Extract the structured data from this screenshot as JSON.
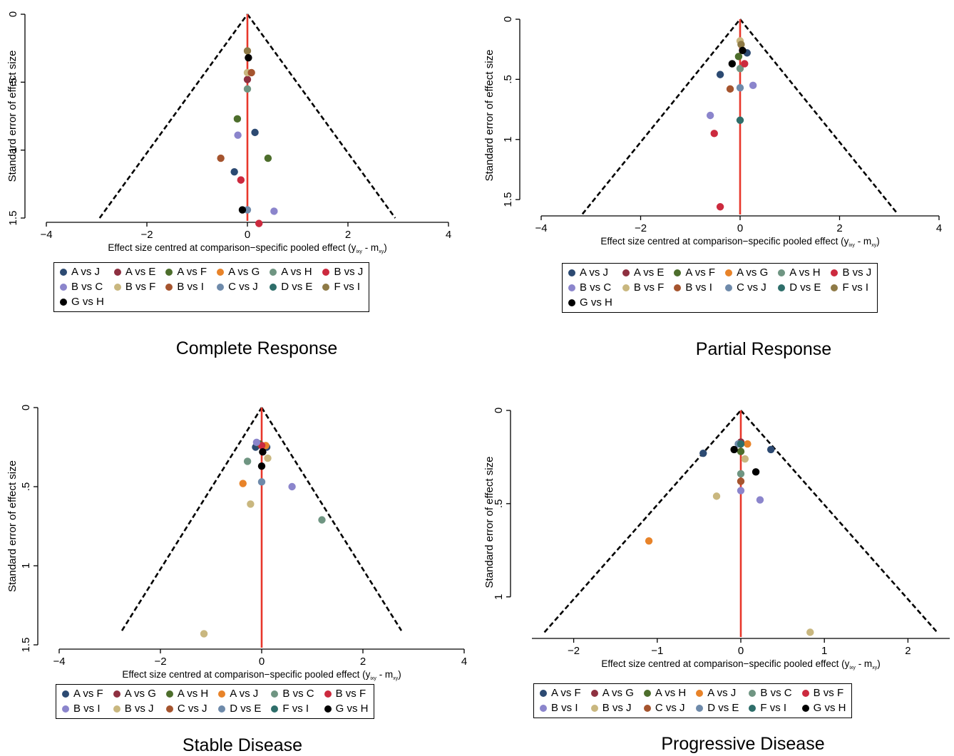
{
  "y_axis_label": "Standard error of effect size",
  "x_axis_label_prefix": "Effect size centred at comparison−specific pooled effect (y",
  "x_axis_label_sub1": "ixy",
  "x_axis_label_mid": " - m",
  "x_axis_label_sub2": "xy",
  "x_axis_label_suffix": ")",
  "colors": {
    "null_line": "#e8372b",
    "funnel_line": "#000000",
    "navy": "#2c4a72",
    "maroon": "#8e3040",
    "olive": "#4d6e2c",
    "orange": "#e88329",
    "sage": "#6f9582",
    "crimson": "#cc2a3e",
    "lavender": "#8b85cc",
    "sand": "#c9b77f",
    "rust": "#a5542e",
    "slate": "#6e8aaa",
    "teal": "#2e6e6a",
    "khaki": "#8e7a46",
    "black": "#000000"
  },
  "chart_data": [
    {
      "type": "scatter",
      "title": "Complete Response",
      "xlabel": "Effect size centred at comparison−specific pooled effect (yixy - mxy)",
      "ylabel": "Standard error of effect size",
      "xlim": [
        -4,
        4
      ],
      "ylim": [
        0,
        1.5
      ],
      "y_reversed": true,
      "xticks": [
        "−4",
        "−2",
        "0",
        "2",
        "4"
      ],
      "xtick_values": [
        -4,
        -2,
        0,
        2,
        4
      ],
      "yticks": [
        "0",
        ".5",
        "1",
        "1.5"
      ],
      "ytick_values": [
        0,
        0.5,
        1,
        1.5
      ],
      "grid": false,
      "legend_position": "bottom",
      "funnel": {
        "apex": [
          0,
          0
        ],
        "left_end": [
          -2.94,
          1.5
        ],
        "right_end": [
          2.94,
          1.5
        ]
      },
      "null_line_x": 0,
      "series": [
        {
          "name": "A vs J",
          "color": "navy",
          "points": [
            [
              0.15,
              0.87
            ],
            [
              -0.26,
              1.16
            ]
          ]
        },
        {
          "name": "A vs E",
          "color": "maroon",
          "points": [
            [
              0.0,
              0.48
            ]
          ]
        },
        {
          "name": "A vs F",
          "color": "olive",
          "points": [
            [
              -0.2,
              0.77
            ],
            [
              0.41,
              1.06
            ]
          ]
        },
        {
          "name": "A vs G",
          "color": "orange",
          "points": []
        },
        {
          "name": "A vs H",
          "color": "sage",
          "points": [
            [
              0.0,
              0.55
            ]
          ]
        },
        {
          "name": "B vs J",
          "color": "crimson",
          "points": [
            [
              -0.13,
              1.22
            ],
            [
              0.23,
              1.54
            ]
          ]
        },
        {
          "name": "B vs C",
          "color": "lavender",
          "points": [
            [
              -0.19,
              0.89
            ],
            [
              0.53,
              1.45
            ]
          ]
        },
        {
          "name": "B vs F",
          "color": "sand",
          "points": [
            [
              0.0,
              0.43
            ]
          ]
        },
        {
          "name": "B vs I",
          "color": "rust",
          "points": [
            [
              0.08,
              0.43
            ],
            [
              -0.53,
              1.06
            ]
          ]
        },
        {
          "name": "C vs J",
          "color": "slate",
          "points": [
            [
              0.0,
              1.44
            ]
          ]
        },
        {
          "name": "D vs E",
          "color": "teal",
          "points": []
        },
        {
          "name": "F vs I",
          "color": "khaki",
          "points": [
            [
              0.0,
              0.27
            ]
          ]
        },
        {
          "name": "G vs H",
          "color": "black",
          "points": [
            [
              0.02,
              0.32
            ],
            [
              -0.1,
              1.44
            ]
          ]
        }
      ]
    },
    {
      "type": "scatter",
      "title": "Partial Response",
      "xlabel": "Effect size centred at comparison−specific pooled effect (yixy - mxy)",
      "ylabel": "Standard error of effect size",
      "xlim": [
        -4,
        4
      ],
      "ylim": [
        0,
        1.6
      ],
      "y_reversed": true,
      "xticks": [
        "−4",
        "−2",
        "0",
        "2",
        "4"
      ],
      "xtick_values": [
        -4,
        -2,
        0,
        2,
        4
      ],
      "yticks": [
        "0",
        ".5",
        "1",
        "1.5"
      ],
      "ytick_values": [
        0,
        0.5,
        1,
        1.5
      ],
      "grid": false,
      "legend_position": "bottom",
      "funnel": {
        "apex": [
          0,
          0
        ],
        "left_end": [
          -3.17,
          1.62
        ],
        "right_end": [
          3.17,
          1.62
        ]
      },
      "null_line_x": 0,
      "series": [
        {
          "name": "A vs J",
          "color": "navy",
          "points": [
            [
              -0.4,
              0.46
            ],
            [
              0.14,
              0.28
            ]
          ]
        },
        {
          "name": "A vs E",
          "color": "maroon",
          "points": []
        },
        {
          "name": "A vs F",
          "color": "olive",
          "points": [
            [
              -0.03,
              0.31
            ]
          ]
        },
        {
          "name": "A vs G",
          "color": "orange",
          "points": []
        },
        {
          "name": "A vs H",
          "color": "sage",
          "points": [
            [
              0.0,
              0.41
            ]
          ]
        },
        {
          "name": "B vs J",
          "color": "crimson",
          "points": [
            [
              0.09,
              0.37
            ],
            [
              -0.52,
              0.95
            ],
            [
              -0.4,
              1.56
            ]
          ]
        },
        {
          "name": "B vs C",
          "color": "lavender",
          "points": [
            [
              0.26,
              0.55
            ],
            [
              -0.6,
              0.8
            ]
          ]
        },
        {
          "name": "B vs F",
          "color": "sand",
          "points": [
            [
              0.0,
              0.18
            ]
          ]
        },
        {
          "name": "B vs I",
          "color": "rust",
          "points": [
            [
              -0.2,
              0.58
            ]
          ]
        },
        {
          "name": "C vs J",
          "color": "slate",
          "points": [
            [
              0.0,
              0.57
            ]
          ]
        },
        {
          "name": "D vs E",
          "color": "teal",
          "points": [
            [
              0.0,
              0.84
            ]
          ]
        },
        {
          "name": "F vs I",
          "color": "khaki",
          "points": [
            [
              0.02,
              0.21
            ]
          ]
        },
        {
          "name": "G vs H",
          "color": "black",
          "points": [
            [
              0.05,
              0.26
            ],
            [
              -0.16,
              0.37
            ]
          ]
        }
      ]
    },
    {
      "type": "scatter",
      "title": "Stable Disease",
      "xlabel": "Effect size centred at comparison−specific pooled effect (yixy - mxy)",
      "ylabel": "Standard error of effect size",
      "xlim": [
        -4,
        4
      ],
      "ylim": [
        0,
        1.5
      ],
      "y_reversed": true,
      "xticks": [
        "−4",
        "−2",
        "0",
        "2",
        "4"
      ],
      "xtick_values": [
        -4,
        -2,
        0,
        2,
        4
      ],
      "yticks": [
        "0",
        ".5",
        "1",
        "1.5"
      ],
      "ytick_values": [
        0,
        0.5,
        1,
        1.5
      ],
      "grid": false,
      "legend_position": "bottom",
      "funnel": {
        "apex": [
          0,
          0
        ],
        "left_end": [
          -2.76,
          1.41
        ],
        "right_end": [
          2.76,
          1.41
        ]
      },
      "null_line_x": 0,
      "series": [
        {
          "name": "A vs F",
          "color": "navy",
          "points": [
            [
              -0.12,
              0.25
            ],
            [
              0.1,
              0.25
            ]
          ]
        },
        {
          "name": "A vs G",
          "color": "maroon",
          "points": [
            [
              0.0,
              0.24
            ]
          ]
        },
        {
          "name": "A vs H",
          "color": "olive",
          "points": [
            [
              -0.04,
              0.23
            ]
          ]
        },
        {
          "name": "A vs J",
          "color": "orange",
          "points": [
            [
              0.08,
              0.24
            ],
            [
              -0.37,
              0.48
            ]
          ]
        },
        {
          "name": "B vs C",
          "color": "sage",
          "points": [
            [
              -0.28,
              0.34
            ],
            [
              1.19,
              0.71
            ]
          ]
        },
        {
          "name": "B vs F",
          "color": "crimson",
          "points": [
            [
              0.0,
              0.24
            ]
          ]
        },
        {
          "name": "B vs I",
          "color": "lavender",
          "points": [
            [
              -0.1,
              0.22
            ],
            [
              0.6,
              0.5
            ]
          ]
        },
        {
          "name": "B vs J",
          "color": "sand",
          "points": [
            [
              0.12,
              0.32
            ],
            [
              -0.22,
              0.61
            ],
            [
              -1.14,
              1.43
            ]
          ]
        },
        {
          "name": "C vs J",
          "color": "rust",
          "points": []
        },
        {
          "name": "D vs E",
          "color": "slate",
          "points": [
            [
              0.0,
              0.47
            ]
          ]
        },
        {
          "name": "F vs I",
          "color": "teal",
          "points": []
        },
        {
          "name": "G vs H",
          "color": "black",
          "points": [
            [
              0.02,
              0.28
            ],
            [
              0.0,
              0.37
            ]
          ]
        }
      ]
    },
    {
      "type": "scatter",
      "title": "Progressive Disease",
      "xlabel": "Effect size centred at comparison−specific pooled effect (yixy - mxy)",
      "ylabel": "Standard error of effect size",
      "xlim": [
        -2.5,
        2.5
      ],
      "ylim": [
        0,
        1.2
      ],
      "y_reversed": true,
      "xticks": [
        "−2",
        "−1",
        "0",
        "1",
        "2"
      ],
      "xtick_values": [
        -2,
        -1,
        0,
        1,
        2
      ],
      "yticks": [
        "0",
        ".5",
        "1"
      ],
      "ytick_values": [
        0,
        0.5,
        1
      ],
      "grid": false,
      "legend_position": "bottom",
      "funnel": {
        "apex": [
          0,
          0
        ],
        "left_end": [
          -2.35,
          1.19
        ],
        "right_end": [
          2.35,
          1.19
        ]
      },
      "null_line_x": 0,
      "series": [
        {
          "name": "A vs F",
          "color": "navy",
          "points": [
            [
              -0.45,
              0.23
            ],
            [
              0.36,
              0.21
            ]
          ]
        },
        {
          "name": "A vs G",
          "color": "maroon",
          "points": [
            [
              0.0,
              0.17
            ]
          ]
        },
        {
          "name": "A vs H",
          "color": "olive",
          "points": [
            [
              0.0,
              0.22
            ]
          ]
        },
        {
          "name": "A vs J",
          "color": "orange",
          "points": [
            [
              0.08,
              0.18
            ],
            [
              -1.1,
              0.7
            ]
          ]
        },
        {
          "name": "B vs C",
          "color": "sage",
          "points": [
            [
              0.0,
              0.34
            ]
          ]
        },
        {
          "name": "B vs F",
          "color": "crimson",
          "points": []
        },
        {
          "name": "B vs I",
          "color": "lavender",
          "points": [
            [
              0.0,
              0.43
            ],
            [
              0.23,
              0.48
            ]
          ]
        },
        {
          "name": "B vs J",
          "color": "sand",
          "points": [
            [
              0.05,
              0.26
            ],
            [
              -0.29,
              0.46
            ],
            [
              0.83,
              1.19
            ]
          ]
        },
        {
          "name": "C vs J",
          "color": "rust",
          "points": [
            [
              0.0,
              0.38
            ]
          ]
        },
        {
          "name": "D vs E",
          "color": "slate",
          "points": [
            [
              -0.03,
              0.18
            ]
          ]
        },
        {
          "name": "F vs I",
          "color": "teal",
          "points": [
            [
              0.0,
              0.18
            ]
          ]
        },
        {
          "name": "G vs H",
          "color": "black",
          "points": [
            [
              -0.08,
              0.21
            ],
            [
              0.18,
              0.33
            ]
          ]
        }
      ]
    }
  ]
}
